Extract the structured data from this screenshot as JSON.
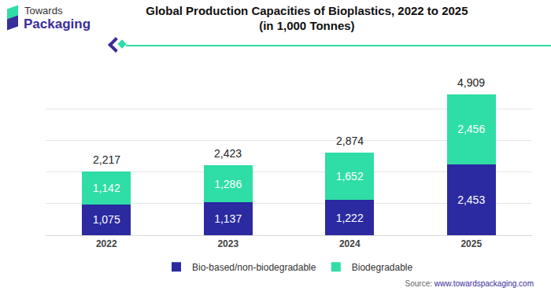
{
  "chart_data": {
    "type": "bar",
    "title": "Global Production Capacities of Bioplastics, 2022 to 2025",
    "subtitle": "(in 1,000 Tonnes)",
    "categories": [
      "2022",
      "2023",
      "2024",
      "2025"
    ],
    "series": [
      {
        "name": "Bio-based/non-biodegradable",
        "color": "#2b2aa0",
        "values": [
          1075,
          1137,
          1222,
          2453
        ],
        "value_labels": [
          "1,075",
          "1,137",
          "1,222",
          "2,453"
        ]
      },
      {
        "name": "Biodegradable",
        "color": "#2fdda6",
        "values": [
          1142,
          1286,
          1652,
          2456
        ],
        "value_labels": [
          "1,142",
          "1,286",
          "1,652",
          "2,456"
        ]
      }
    ],
    "totals": [
      2217,
      2423,
      2874,
      4909
    ],
    "total_labels": [
      "2,217",
      "2,423",
      "2,874",
      "4,909"
    ],
    "stacked": true,
    "data_labels": true,
    "ylim": [
      0,
      5500
    ],
    "yticks": [
      0,
      1100,
      2200,
      3300,
      4400,
      5500
    ],
    "grid": true,
    "legend": "bottom",
    "tick_labels": "x"
  },
  "logo": {
    "line1": "Towards",
    "line2": "Packaging"
  },
  "source": "Source: www.towardspackaging.com"
}
